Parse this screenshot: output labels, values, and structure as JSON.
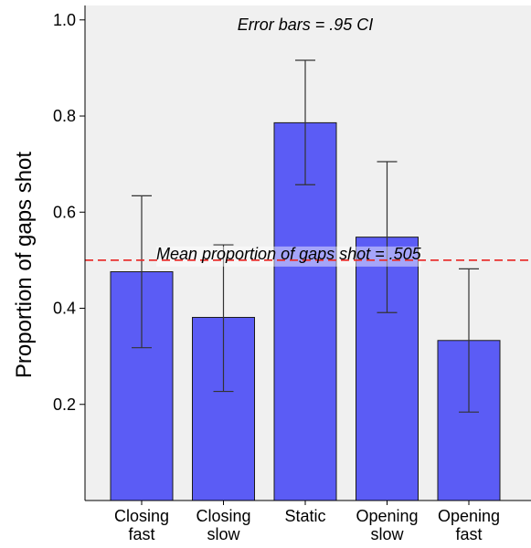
{
  "chart_data": {
    "type": "bar",
    "categories": [
      [
        "Closing",
        "fast"
      ],
      [
        "Closing",
        "slow"
      ],
      [
        "Static"
      ],
      [
        "Opening",
        "slow"
      ],
      [
        "Opening",
        "fast"
      ]
    ],
    "values": [
      0.476,
      0.381,
      0.786,
      0.548,
      0.333
    ],
    "error_bars": {
      "lower": [
        0.318,
        0.227,
        0.657,
        0.391,
        0.184
      ],
      "upper": [
        0.634,
        0.532,
        0.916,
        0.705,
        0.482
      ]
    },
    "ylabel": "Proportion of gaps shot",
    "xlabel": "",
    "ylim": [
      0.0,
      1.03
    ],
    "yticks": [
      "0.2",
      "0.4",
      "0.6",
      "0.8",
      "1.0"
    ],
    "annotation": "Error bars = .95 CI",
    "reference_line": {
      "value": 0.5,
      "label": "Mean proportion of gaps shot = .505",
      "color": "#e8312f",
      "style": "dashed"
    },
    "colors": {
      "bar": "#5b5cf5",
      "plot_background": "#f0f0f0",
      "error_bar": "#333333"
    },
    "grid": false
  }
}
